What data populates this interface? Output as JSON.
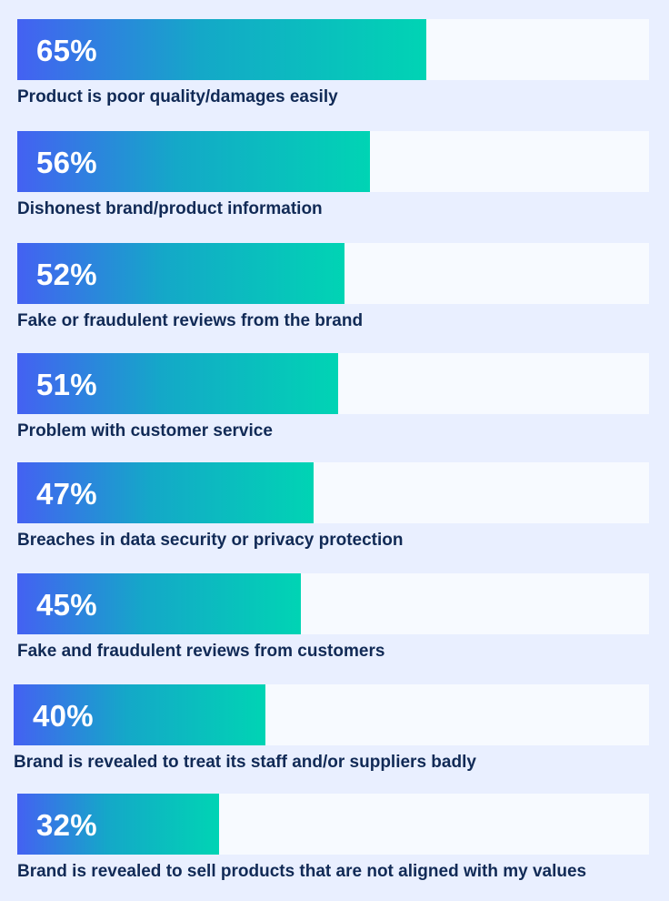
{
  "chart_data": {
    "type": "bar",
    "orientation": "horizontal",
    "title": "",
    "xlabel": "",
    "ylabel": "",
    "xlim": [
      0,
      100
    ],
    "unit": "%",
    "colors": {
      "background": "#e9efff",
      "track": "#f7faff",
      "gradient_start": "#4461f2",
      "gradient_end": "#00d4b4",
      "label": "#112a56",
      "value_text": "#ffffff"
    },
    "categories": [
      "Product is poor quality/damages easily",
      "Dishonest brand/product information",
      "Fake or fraudulent reviews from the brand",
      "Problem with customer service",
      "Breaches in data security or privacy protection",
      "Fake and fraudulent reviews from customers",
      "Brand is revealed to treat its staff and/or suppliers badly",
      "Brand is revealed to sell products that are not aligned with my values"
    ],
    "values": [
      65,
      56,
      52,
      51,
      47,
      45,
      40,
      32
    ],
    "value_labels": [
      "65%",
      "56%",
      "52%",
      "51%",
      "47%",
      "45%",
      "40%",
      "32%"
    ]
  }
}
